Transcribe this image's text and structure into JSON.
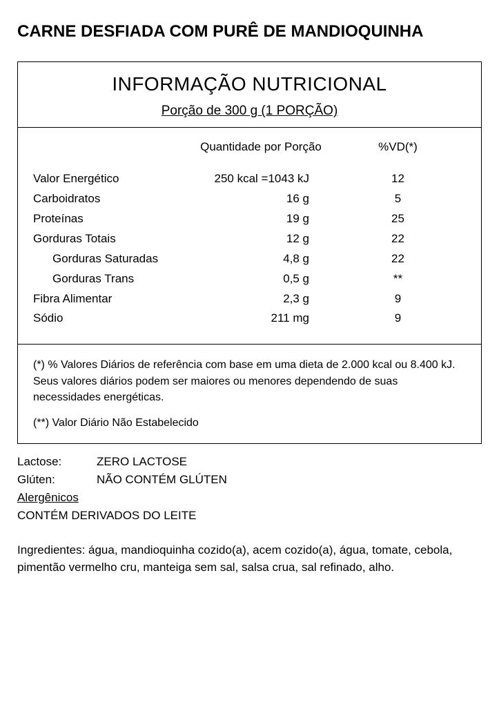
{
  "product_title": "CARNE DESFIADA COM PURÊ DE MANDIOQUINHA",
  "nutrition": {
    "title": "INFORMAÇÃO NUTRICIONAL",
    "serving": "Porção de 300 g  (1 PORÇÃO)",
    "col_qty": "Quantidade por Porção",
    "col_vd": "%VD(*)",
    "rows": [
      {
        "name": "Valor Energético",
        "qty": "250 kcal =1043 kJ",
        "vd": "12",
        "indent": false
      },
      {
        "name": "Carboidratos",
        "qty": "16 g",
        "vd": "5",
        "indent": false
      },
      {
        "name": "Proteínas",
        "qty": "19 g",
        "vd": "25",
        "indent": false
      },
      {
        "name": "Gorduras Totais",
        "qty": "12 g",
        "vd": "22",
        "indent": false
      },
      {
        "name": "Gorduras Saturadas",
        "qty": "4,8 g",
        "vd": "22",
        "indent": true
      },
      {
        "name": "Gorduras Trans",
        "qty": "0,5 g",
        "vd": "**",
        "indent": true
      },
      {
        "name": "Fibra Alimentar",
        "qty": "2,3 g",
        "vd": "9",
        "indent": false
      },
      {
        "name": "Sódio",
        "qty": "211 mg",
        "vd": "9",
        "indent": false
      }
    ],
    "note1": "(*) % Valores Diários de referência com base em uma dieta de 2.000 kcal ou 8.400 kJ. Seus valores diários podem ser maiores ou menores dependendo de suas necessidades energéticas.",
    "note2": "(**) Valor Diário Não Estabelecido"
  },
  "attrs": {
    "lactose_label": "Lactose:",
    "lactose_value": "ZERO LACTOSE",
    "gluten_label": "Glúten:",
    "gluten_value": "NÃO CONTÉM GLÚTEN",
    "allerg_title": "Alergênicos",
    "allerg_value": "CONTÉM DERIVADOS DO LEITE"
  },
  "ingredients": "Ingredientes: água, mandioquinha cozido(a), acem cozido(a), água, tomate, cebola, pimentão vermelho cru, manteiga sem sal, salsa crua, sal refinado, alho."
}
